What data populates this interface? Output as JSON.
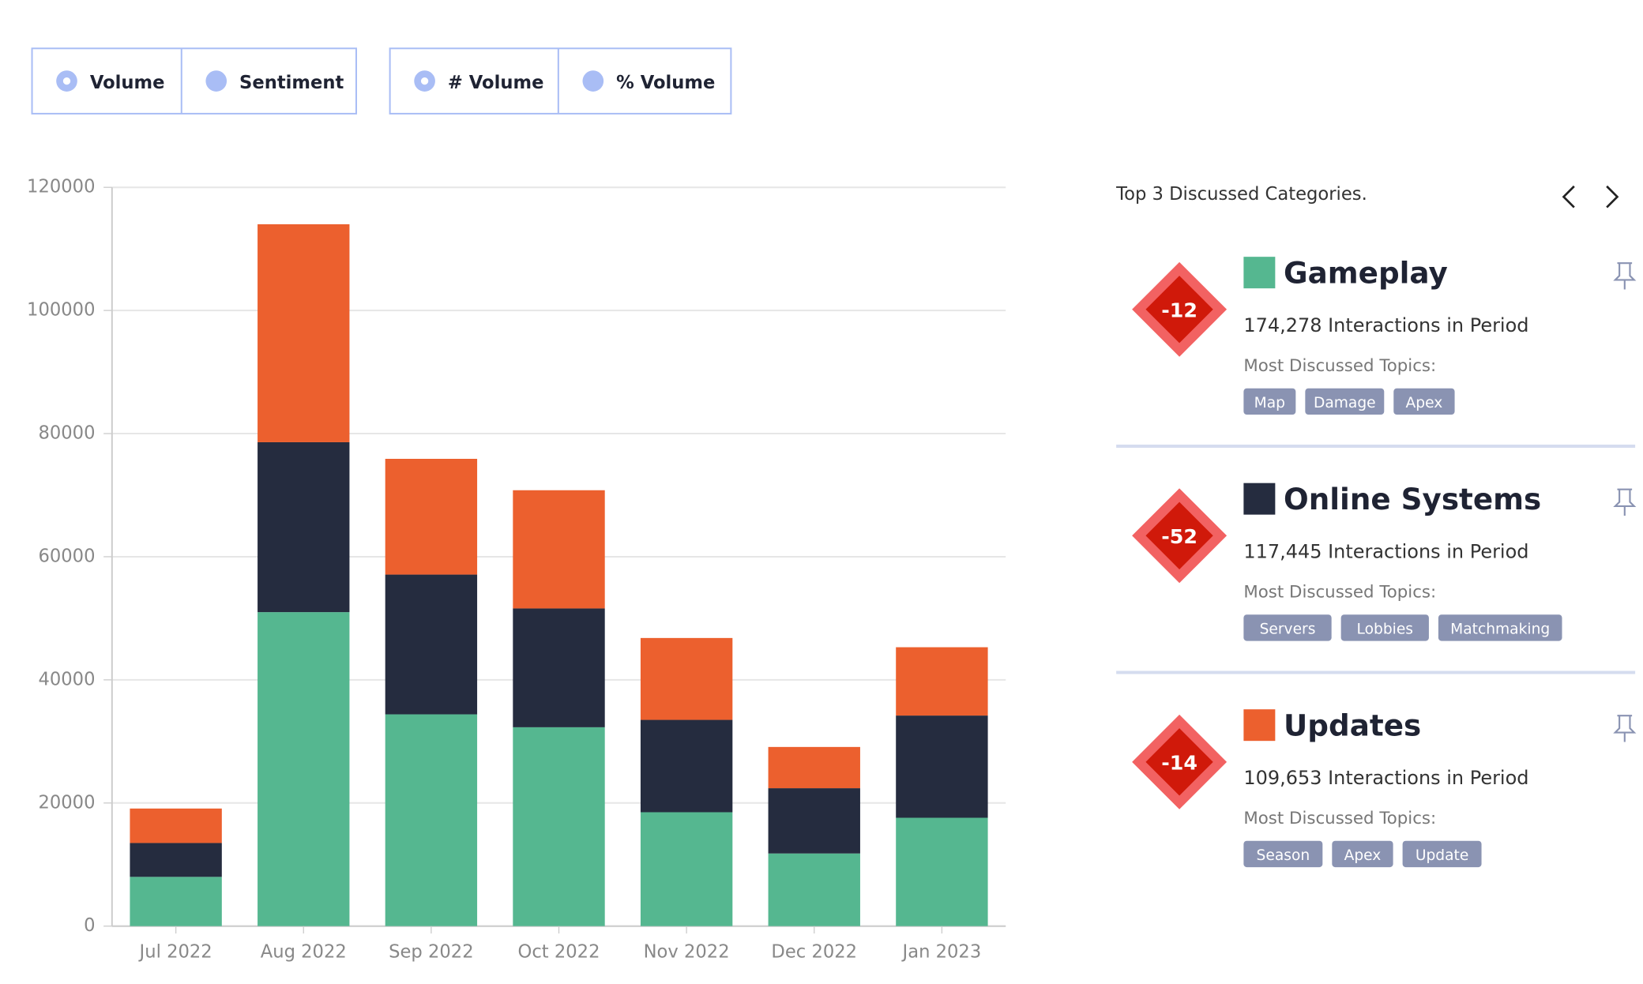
{
  "controls": {
    "view_toggle": [
      "Volume",
      "Sentiment"
    ],
    "measure_toggle": [
      "# Volume",
      "% Volume"
    ]
  },
  "chart_data": {
    "type": "stacked-bar",
    "categories": [
      "Jul 2022",
      "Aug 2022",
      "Sep 2022",
      "Oct 2022",
      "Nov 2022",
      "Dec 2022",
      "Jan 2023"
    ],
    "series": [
      {
        "color": "#55b790",
        "values": [
          8000,
          51000,
          34400,
          32300,
          18500,
          11800,
          17600
        ]
      },
      {
        "color": "#252c3f",
        "values": [
          5500,
          27600,
          22700,
          19300,
          15000,
          10600,
          16600
        ]
      },
      {
        "color": "#ec602e",
        "values": [
          5600,
          35400,
          18800,
          19200,
          13300,
          6700,
          11100
        ]
      }
    ],
    "ylim": [
      0,
      120000
    ],
    "yticks": [
      0,
      20000,
      40000,
      60000,
      80000,
      100000,
      120000
    ],
    "grid": true
  },
  "panel": {
    "title": "Top 3 Discussed Categories.",
    "cards": [
      {
        "score": -12,
        "name": "Gameplay",
        "color": "#55b790",
        "interactions": "174,278 Interactions in Period",
        "topics_label": "Most Discussed Topics:",
        "topics": [
          "Map",
          "Damage",
          "Apex"
        ]
      },
      {
        "score": -52,
        "name": "Online Systems",
        "color": "#252c3f",
        "interactions": "117,445 Interactions in Period",
        "topics_label": "Most Discussed Topics:",
        "topics": [
          "Servers",
          "Lobbies",
          "Matchmaking"
        ]
      },
      {
        "score": -14,
        "name": "Updates",
        "color": "#ec602e",
        "interactions": "109,653 Interactions in Period",
        "topics_label": "Most Discussed Topics:",
        "topics": [
          "Season",
          "Apex",
          "Update"
        ]
      }
    ]
  }
}
